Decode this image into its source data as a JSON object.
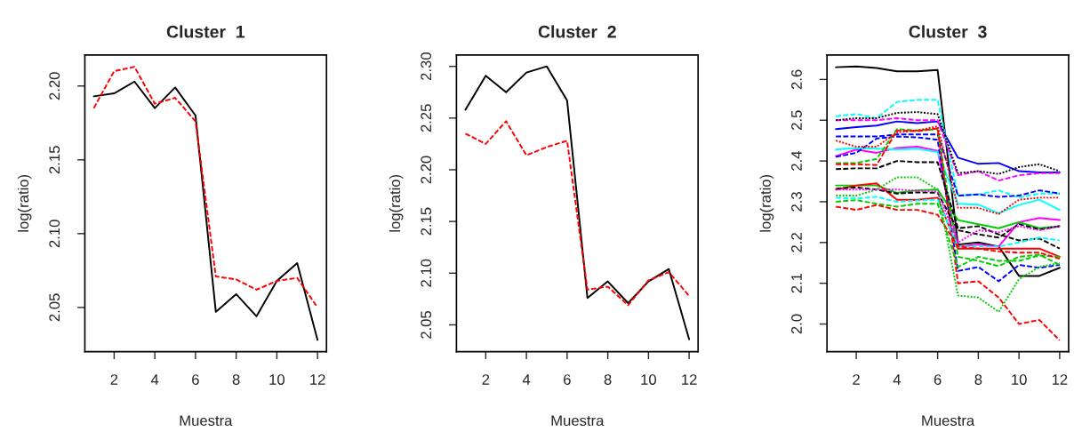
{
  "chart_data": [
    {
      "type": "line",
      "title": "Cluster  1",
      "xlabel": "Muestra",
      "ylabel": "log(ratio)",
      "x": [
        1,
        2,
        3,
        4,
        5,
        6,
        7,
        8,
        9,
        10,
        11,
        12
      ],
      "xlim": [
        0.56,
        12.44
      ],
      "xticks": [
        2,
        4,
        6,
        8,
        10,
        12
      ],
      "ylim": [
        2.02,
        2.221
      ],
      "yticks": [
        {
          "value": 2.05,
          "label": "2.05"
        },
        {
          "value": 2.1,
          "label": "2.10"
        },
        {
          "value": 2.15,
          "label": "2.15"
        },
        {
          "value": 2.2,
          "label": "2.20"
        }
      ],
      "series": [
        {
          "color": "#000000",
          "line_style": "solid",
          "values": [
            2.193,
            2.195,
            2.203,
            2.185,
            2.199,
            2.18,
            2.047,
            2.059,
            2.044,
            2.068,
            2.08,
            2.028
          ]
        },
        {
          "color": "#ff0000",
          "line_style": "dashed",
          "values": [
            2.185,
            2.21,
            2.213,
            2.188,
            2.192,
            2.176,
            2.071,
            2.069,
            2.062,
            2.068,
            2.07,
            2.05
          ]
        }
      ]
    },
    {
      "type": "line",
      "title": "Cluster  2",
      "xlabel": "Muestra",
      "ylabel": "log(ratio)",
      "x": [
        1,
        2,
        3,
        4,
        5,
        6,
        7,
        8,
        9,
        10,
        11,
        12
      ],
      "xlim": [
        0.56,
        12.44
      ],
      "xticks": [
        2,
        4,
        6,
        8,
        10,
        12
      ],
      "ylim": [
        2.024,
        2.311
      ],
      "yticks": [
        2.05,
        {
          "value": 2.1,
          "label": "2.10"
        },
        2.15,
        {
          "value": 2.2,
          "label": "2.20"
        },
        2.25,
        {
          "value": 2.3,
          "label": "2.30"
        }
      ],
      "series": [
        {
          "color": "#000000",
          "line_style": "solid",
          "values": [
            2.258,
            2.291,
            2.275,
            2.294,
            2.3,
            2.267,
            2.076,
            2.092,
            2.071,
            2.092,
            2.104,
            2.036
          ]
        },
        {
          "color": "#ff0000",
          "line_style": "dashed",
          "values": [
            2.235,
            2.225,
            2.247,
            2.214,
            2.222,
            2.228,
            2.084,
            2.087,
            2.069,
            2.093,
            2.101,
            2.078
          ]
        }
      ]
    },
    {
      "type": "line",
      "title": "Cluster  3",
      "xlabel": "Muestra",
      "ylabel": "log(ratio)",
      "x": [
        1,
        2,
        3,
        4,
        5,
        6,
        7,
        8,
        9,
        10,
        11,
        12
      ],
      "xlim": [
        0.56,
        12.44
      ],
      "xticks": [
        2,
        4,
        6,
        8,
        10,
        12
      ],
      "ylim": [
        1.932,
        2.66
      ],
      "yticks": [
        {
          "value": 2.0,
          "label": "2.0"
        },
        2.1,
        2.2,
        2.3,
        2.4,
        2.5,
        2.6
      ],
      "series": [
        {
          "color": "#000000",
          "line_style": "solid",
          "values": [
            2.63,
            2.632,
            2.628,
            2.62,
            2.62,
            2.623,
            2.195,
            2.2,
            2.19,
            2.118,
            2.118,
            2.138
          ]
        },
        {
          "color": "#00ffff",
          "line_style": "dashed",
          "values": [
            2.51,
            2.515,
            2.505,
            2.545,
            2.55,
            2.55,
            2.315,
            2.318,
            2.328,
            2.31,
            2.32,
            2.32
          ]
        },
        {
          "color": "#000000",
          "line_style": "dotted",
          "values": [
            2.5,
            2.505,
            2.505,
            2.518,
            2.52,
            2.515,
            2.37,
            2.375,
            2.368,
            2.385,
            2.392,
            2.375
          ]
        },
        {
          "color": "#ff00ff",
          "line_style": "dashed",
          "values": [
            2.5,
            2.5,
            2.5,
            2.505,
            2.5,
            2.5,
            2.365,
            2.375,
            2.352,
            2.365,
            2.37,
            2.37
          ]
        },
        {
          "color": "#0000ff",
          "line_style": "solid",
          "values": [
            2.478,
            2.483,
            2.487,
            2.497,
            2.493,
            2.497,
            2.408,
            2.393,
            2.395,
            2.375,
            2.372,
            2.372
          ]
        },
        {
          "color": "#0000ff",
          "line_style": "dashed",
          "values": [
            2.46,
            2.46,
            2.46,
            2.465,
            2.465,
            2.465,
            2.315,
            2.318,
            2.312,
            2.315,
            2.328,
            2.32
          ]
        },
        {
          "color": "#0000ff",
          "line_style": "dashed",
          "values": [
            2.41,
            2.42,
            2.455,
            2.46,
            2.458,
            2.452,
            2.13,
            2.14,
            2.105,
            2.145,
            2.138,
            2.145
          ]
        },
        {
          "color": "#ff0000",
          "line_style": "dotted",
          "values": [
            2.45,
            2.435,
            2.435,
            2.47,
            2.475,
            2.485,
            2.285,
            2.285,
            2.27,
            2.305,
            2.31,
            2.31
          ]
        },
        {
          "color": "#00cd00",
          "line_style": "dashed",
          "values": [
            2.395,
            2.395,
            2.405,
            2.478,
            2.475,
            2.478,
            2.165,
            2.155,
            2.142,
            2.165,
            2.17,
            2.145
          ]
        },
        {
          "color": "#ff0000",
          "line_style": "dashed",
          "values": [
            2.392,
            2.392,
            2.39,
            2.475,
            2.473,
            2.48,
            2.1,
            2.105,
            2.065,
            2.0,
            2.01,
            1.96
          ]
        },
        {
          "color": "#ff00ff",
          "line_style": "solid",
          "values": [
            2.412,
            2.428,
            2.42,
            2.432,
            2.435,
            2.425,
            2.19,
            2.195,
            2.19,
            2.25,
            2.26,
            2.255
          ]
        },
        {
          "color": "#00ffff",
          "line_style": "solid",
          "values": [
            2.428,
            2.432,
            2.43,
            2.428,
            2.43,
            2.422,
            2.295,
            2.293,
            2.272,
            2.292,
            2.305,
            2.28
          ]
        },
        {
          "color": "#000000",
          "line_style": "dashed",
          "values": [
            2.38,
            2.382,
            2.382,
            2.4,
            2.397,
            2.397,
            2.235,
            2.24,
            2.22,
            2.205,
            2.21,
            2.185
          ]
        },
        {
          "color": "#00cd00",
          "line_style": "solid",
          "values": [
            2.34,
            2.34,
            2.34,
            2.322,
            2.328,
            2.33,
            2.255,
            2.245,
            2.235,
            2.25,
            2.235,
            2.24
          ]
        },
        {
          "color": "#00cd00",
          "line_style": "dotted",
          "values": [
            2.315,
            2.315,
            2.33,
            2.36,
            2.36,
            2.33,
            2.07,
            2.065,
            2.03,
            2.11,
            2.14,
            2.15
          ]
        },
        {
          "color": "#000000",
          "line_style": "dashed",
          "values": [
            2.332,
            2.335,
            2.33,
            2.32,
            2.323,
            2.322,
            2.23,
            2.22,
            2.212,
            2.245,
            2.232,
            2.24
          ]
        },
        {
          "color": "#ff00ff",
          "line_style": "dotted",
          "values": [
            2.33,
            2.33,
            2.33,
            2.33,
            2.327,
            2.325,
            2.2,
            2.23,
            2.225,
            2.24,
            2.23,
            2.24
          ]
        },
        {
          "color": "#ff0000",
          "line_style": "solid",
          "values": [
            2.33,
            2.34,
            2.345,
            2.305,
            2.305,
            2.31,
            2.185,
            2.185,
            2.185,
            2.185,
            2.185,
            2.165
          ]
        },
        {
          "color": "#00ffff",
          "line_style": "dashed",
          "values": [
            2.31,
            2.308,
            2.312,
            2.3,
            2.303,
            2.305,
            2.19,
            2.19,
            2.19,
            2.2,
            2.212,
            2.205
          ]
        },
        {
          "color": "#00cd00",
          "line_style": "dashed",
          "values": [
            2.3,
            2.304,
            2.295,
            2.288,
            2.295,
            2.295,
            2.14,
            2.165,
            2.155,
            2.155,
            2.168,
            2.165
          ]
        },
        {
          "color": "#ff0000",
          "line_style": "dashed",
          "values": [
            2.288,
            2.28,
            2.292,
            2.28,
            2.28,
            2.268,
            2.19,
            2.185,
            2.178,
            2.175,
            2.175,
            2.16
          ]
        }
      ]
    }
  ]
}
